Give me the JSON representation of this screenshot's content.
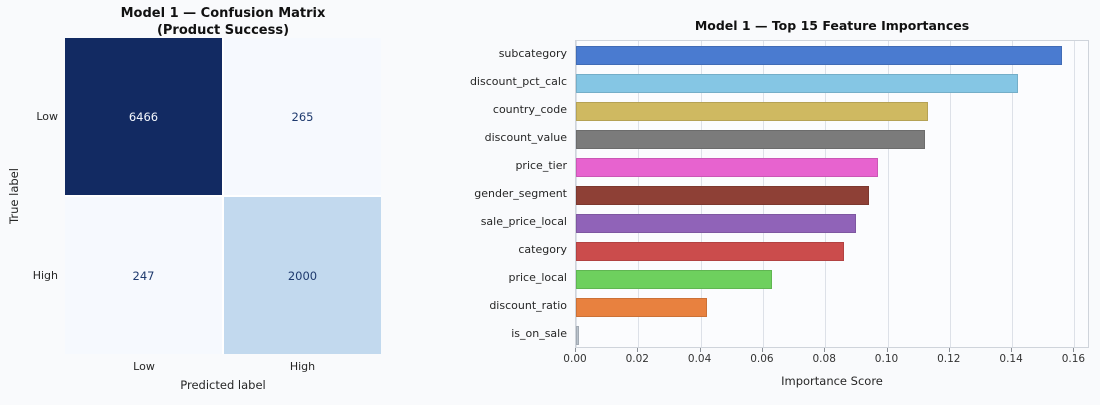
{
  "figure": {
    "bg": "#f9fafc"
  },
  "confusion": {
    "title_line1": "Model 1 — Confusion Matrix",
    "title_line2": "(Product Success)",
    "ylabel": "True label",
    "xlabel": "Predicted label",
    "row_labels": [
      "Low",
      "High"
    ],
    "col_labels": [
      "Low",
      "High"
    ],
    "cells": [
      {
        "row": "Low",
        "col": "Low",
        "value": "6466",
        "bg": "#122a62",
        "fg": "#f5f8fd"
      },
      {
        "row": "Low",
        "col": "High",
        "value": "265",
        "bg": "#f6f9fe",
        "fg": "#1e3a6e"
      },
      {
        "row": "High",
        "col": "Low",
        "value": "247",
        "bg": "#f6f9fe",
        "fg": "#1e3a6e"
      },
      {
        "row": "High",
        "col": "High",
        "value": "2000",
        "bg": "#c2d9ee",
        "fg": "#1e3a6e"
      }
    ]
  },
  "chart_data": {
    "type": "bar",
    "orientation": "horizontal",
    "title": "Model 1 — Top 15 Feature Importances",
    "xlabel": "Importance Score",
    "ylabel": "",
    "xlim": [
      0,
      0.165
    ],
    "xticks": [
      0.0,
      0.02,
      0.04,
      0.06,
      0.08,
      0.1,
      0.12,
      0.14,
      0.16
    ],
    "grid": true,
    "legend": false,
    "categories": [
      "subcategory",
      "discount_pct_calc",
      "country_code",
      "discount_value",
      "price_tier",
      "gender_segment",
      "sale_price_local",
      "category",
      "price_local",
      "discount_ratio",
      "is_on_sale"
    ],
    "values": [
      0.156,
      0.142,
      0.113,
      0.112,
      0.097,
      0.094,
      0.09,
      0.086,
      0.063,
      0.042,
      0.001
    ],
    "colors": [
      "#4a7bd0",
      "#85c6e4",
      "#cfb961",
      "#7b7b7b",
      "#e763cf",
      "#8e4036",
      "#9063b8",
      "#cb4c4c",
      "#6ed05e",
      "#e8813f",
      "#b9c2cc"
    ]
  }
}
